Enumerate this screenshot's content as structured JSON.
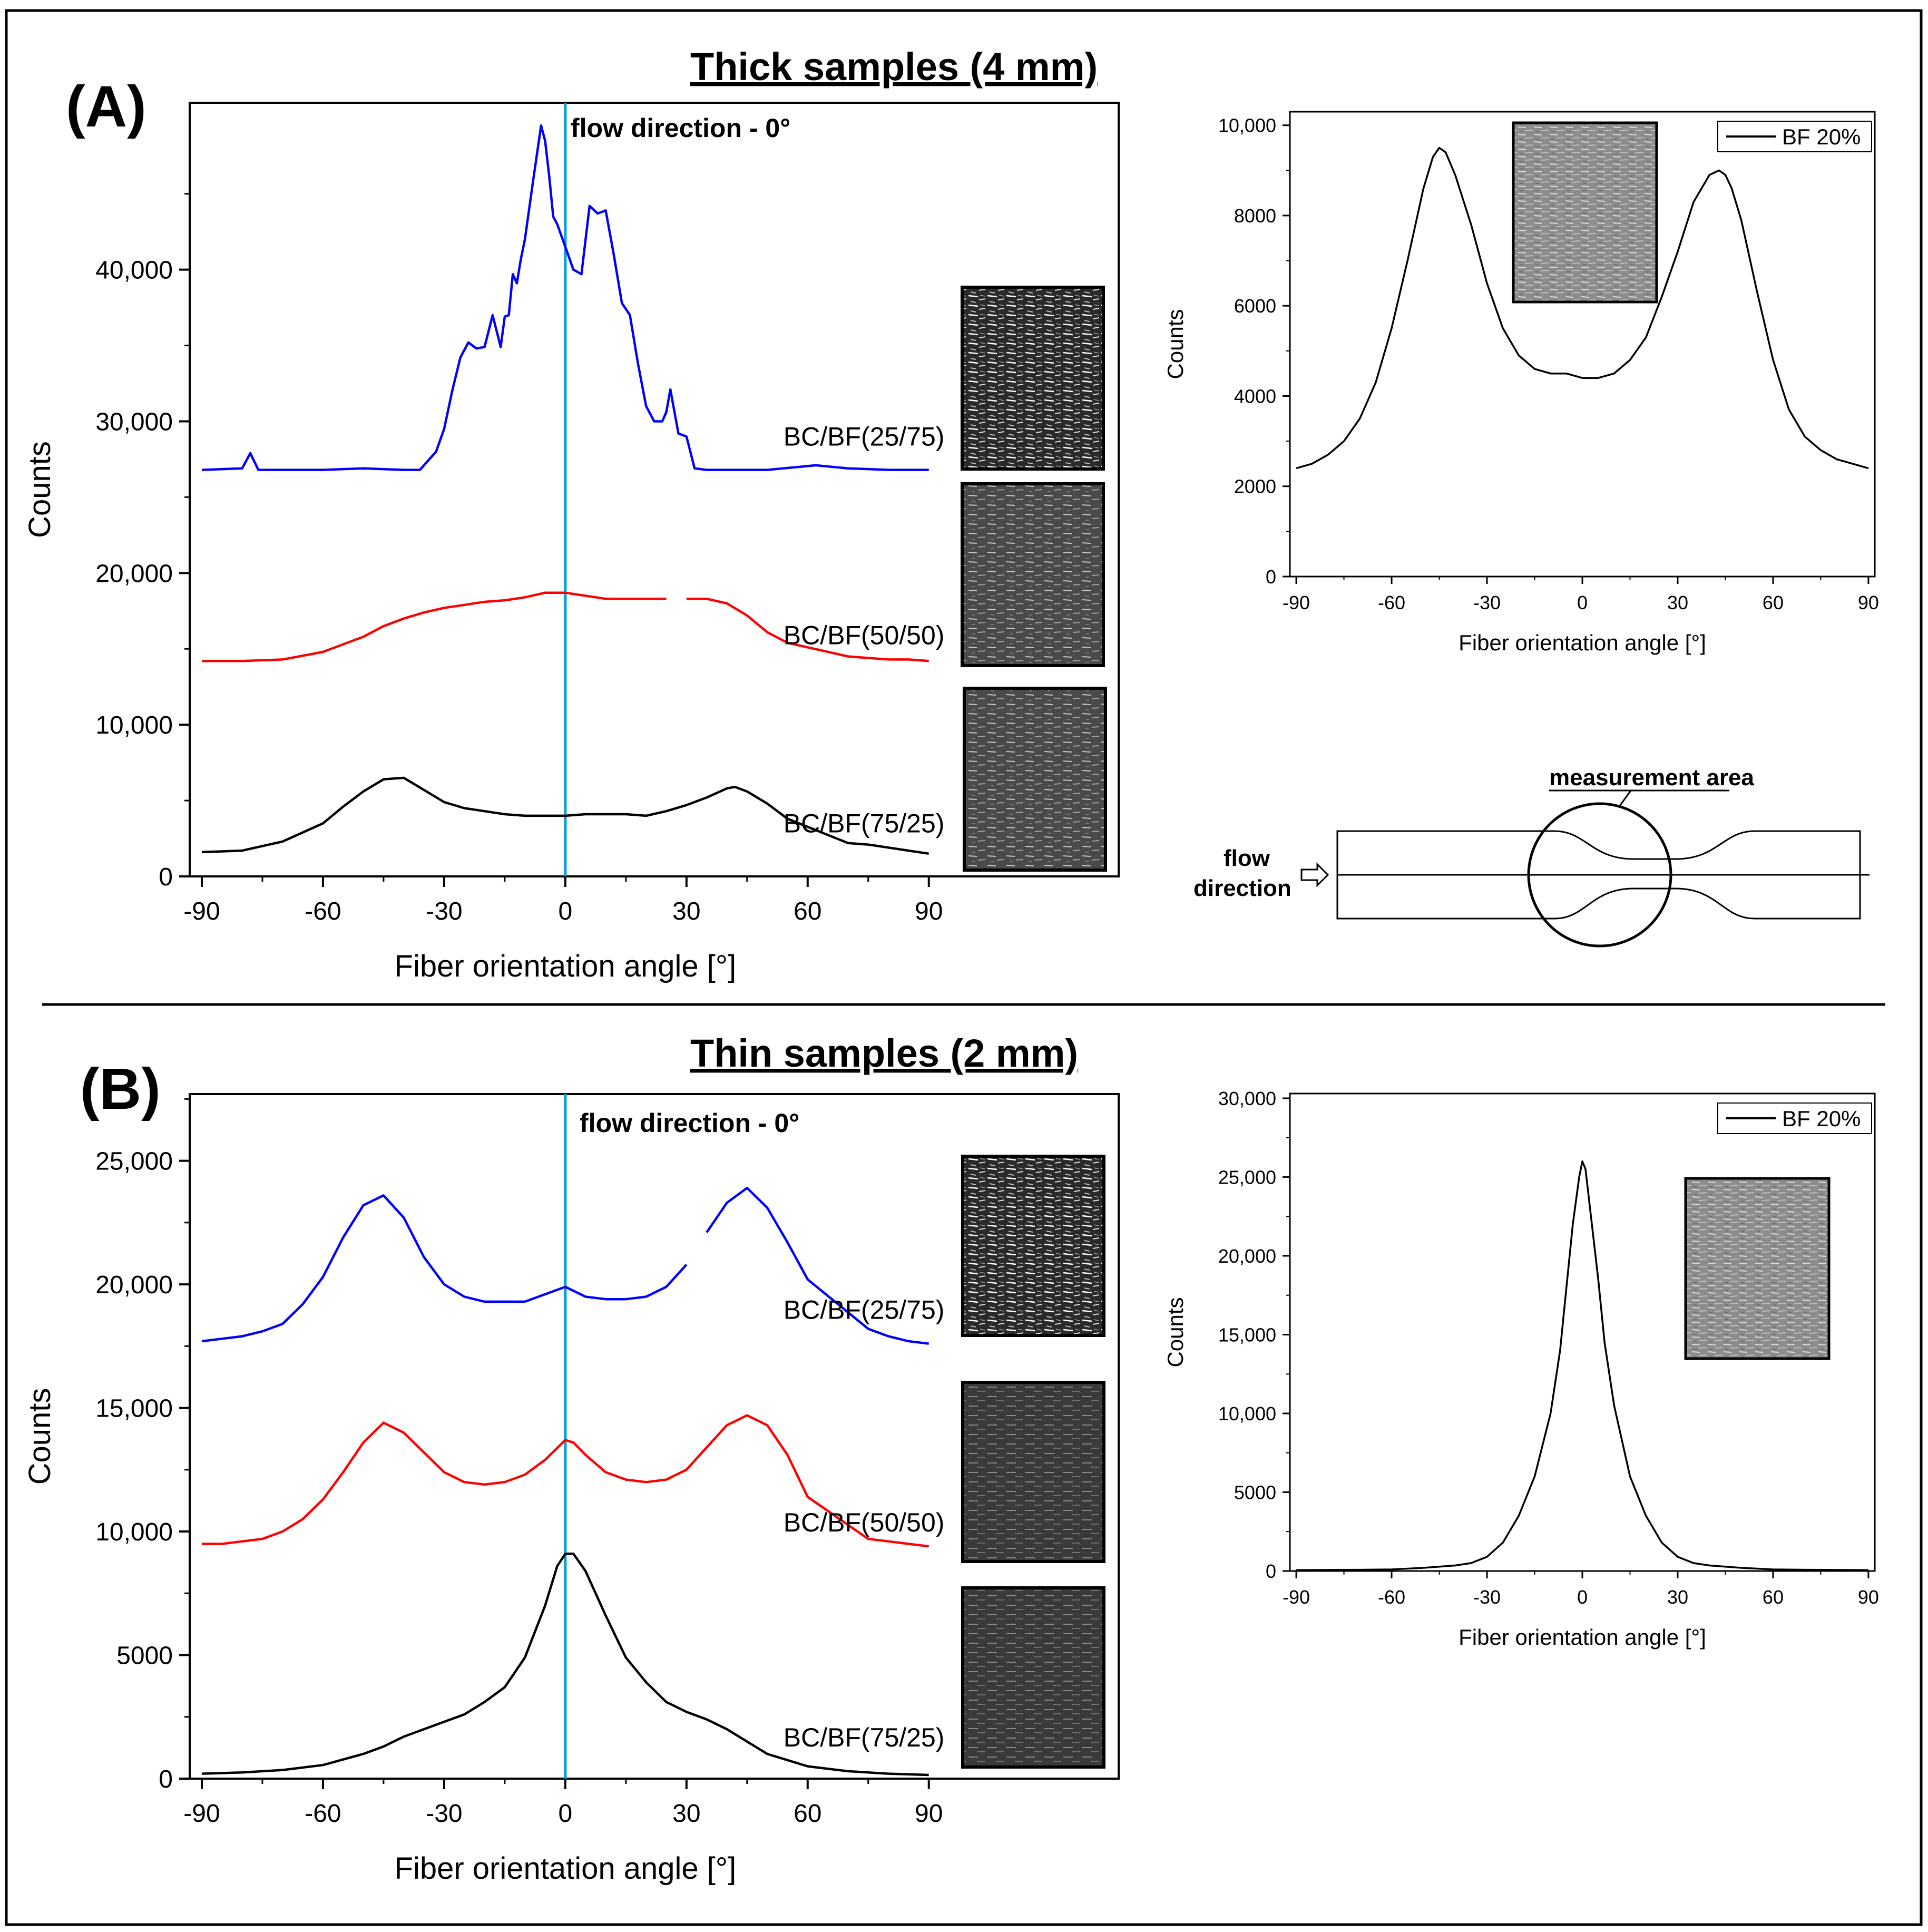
{
  "figure": {
    "panel_a": {
      "letter": "(A)",
      "title": "Thick samples (4 mm)",
      "flow_label": "flow direction - 0°",
      "diagram": {
        "measurement_label": "measurement area",
        "flow_label_line1": "flow",
        "flow_label_line2": "direction"
      }
    },
    "panel_b": {
      "letter": "(B)",
      "title": "Thin samples (2 mm)",
      "flow_label": "flow direction - 0°"
    }
  },
  "colors": {
    "blue": "#0000ff",
    "red": "#ff0000",
    "black": "#000000",
    "flow_line": "#00a0e0"
  },
  "chart_data": [
    {
      "id": "chartA",
      "type": "line",
      "xlabel": "Fiber orientation angle [°]",
      "ylabel": "Counts",
      "xlim": [
        -93,
        137
      ],
      "ylim": [
        0,
        51000
      ],
      "xticks": [
        -90,
        -60,
        -30,
        0,
        30,
        60,
        90
      ],
      "xtick_labels": [
        "-90",
        "-60",
        "-30",
        "0",
        "30",
        "60",
        "90"
      ],
      "yticks": [
        0,
        10000,
        20000,
        30000,
        40000
      ],
      "ytick_labels": [
        "0",
        "10,000",
        "20,000",
        "30,000",
        "40,000"
      ],
      "flow_direction_x": 0,
      "series": [
        {
          "name": "BC/BF(25/75)",
          "color": "#0000ff",
          "label_at": [
            54,
            28400
          ],
          "x": [
            -90,
            -80,
            -78,
            -76,
            -60,
            -50,
            -40,
            -36,
            -32,
            -30,
            -28,
            -26,
            -24,
            -22,
            -20,
            -18,
            -16,
            -15,
            -14,
            -13,
            -12,
            -11,
            -10,
            -8,
            -6,
            -5,
            -4,
            -3,
            -2,
            0,
            2,
            4,
            6,
            8,
            10,
            12,
            14,
            16,
            18,
            20,
            22,
            24,
            25,
            26,
            28,
            30,
            32,
            35,
            40,
            50,
            62,
            70,
            80,
            90
          ],
          "values": [
            26800,
            26900,
            27900,
            26800,
            26800,
            26900,
            26800,
            26800,
            28000,
            29500,
            32000,
            34200,
            35200,
            34800,
            34900,
            37000,
            34900,
            36900,
            37000,
            39700,
            39100,
            40700,
            42000,
            45800,
            49500,
            48500,
            46200,
            43500,
            43000,
            41500,
            40000,
            39700,
            44200,
            43700,
            43900,
            41000,
            37800,
            37000,
            33800,
            31000,
            30000,
            30000,
            30600,
            32100,
            29200,
            29000,
            26900,
            26800,
            26800,
            26800,
            27100,
            26900,
            26800,
            26800
          ]
        },
        {
          "name": "BC/BF(50/50)",
          "color": "#ff0000",
          "label_at": [
            54,
            15300
          ],
          "x": [
            -90,
            -80,
            -70,
            -60,
            -50,
            -45,
            -40,
            -35,
            -30,
            -25,
            -20,
            -15,
            -10,
            -5,
            0,
            5,
            10,
            15,
            20,
            25,
            30,
            35,
            40,
            45,
            50,
            55,
            70,
            75,
            80,
            85,
            90
          ],
          "values": [
            14200,
            14200,
            14300,
            14800,
            15800,
            16500,
            17000,
            17400,
            17700,
            17900,
            18100,
            18200,
            18400,
            18700,
            18700,
            18500,
            18300,
            18300,
            18300,
            18300,
            18300,
            18300,
            18000,
            17200,
            16100,
            15400,
            14500,
            14400,
            14300,
            14300,
            14200
          ],
          "gaps_after": [
            25
          ]
        },
        {
          "name": "BC/BF(75/25)",
          "color": "#000000",
          "label_at": [
            54,
            2900
          ],
          "x": [
            -90,
            -80,
            -70,
            -60,
            -55,
            -50,
            -45,
            -40,
            -35,
            -30,
            -25,
            -20,
            -15,
            -10,
            -5,
            0,
            5,
            10,
            15,
            20,
            25,
            30,
            35,
            40,
            42,
            45,
            50,
            55,
            70,
            75,
            80,
            85,
            90
          ],
          "values": [
            1600,
            1700,
            2300,
            3500,
            4600,
            5600,
            6400,
            6500,
            5700,
            4900,
            4500,
            4300,
            4100,
            4000,
            4000,
            4000,
            4100,
            4100,
            4100,
            4000,
            4300,
            4700,
            5200,
            5800,
            5900,
            5600,
            4800,
            3800,
            2200,
            2100,
            1900,
            1700,
            1500
          ],
          "gaps_after": [
            27
          ]
        }
      ]
    },
    {
      "id": "chartB",
      "type": "line",
      "xlabel": "Fiber orientation angle [°]",
      "ylabel": "Counts",
      "xlim": [
        -93,
        137
      ],
      "ylim": [
        0,
        27700
      ],
      "xticks": [
        -90,
        -60,
        -30,
        0,
        30,
        60,
        90
      ],
      "xtick_labels": [
        "-90",
        "-60",
        "-30",
        "0",
        "30",
        "60",
        "90"
      ],
      "yticks": [
        0,
        5000,
        10000,
        15000,
        20000,
        25000
      ],
      "ytick_labels": [
        "0",
        "5000",
        "10,000",
        "15,000",
        "20,000",
        "25,000"
      ],
      "flow_direction_x": 0,
      "series": [
        {
          "name": "BC/BF(25/75)",
          "color": "#0000ff",
          "label_at": [
            54,
            18600
          ],
          "x": [
            -90,
            -85,
            -80,
            -75,
            -70,
            -65,
            -60,
            -55,
            -50,
            -45,
            -40,
            -35,
            -30,
            -25,
            -20,
            -15,
            -10,
            -5,
            0,
            5,
            10,
            15,
            20,
            25,
            30,
            35,
            40,
            45,
            50,
            55,
            60,
            75,
            80,
            85,
            90
          ],
          "values": [
            17700,
            17800,
            17900,
            18100,
            18400,
            19200,
            20300,
            21900,
            23200,
            23600,
            22700,
            21100,
            20000,
            19500,
            19300,
            19300,
            19300,
            19600,
            19900,
            19500,
            19400,
            19400,
            19500,
            19900,
            20800,
            22100,
            23300,
            23900,
            23100,
            21700,
            20200,
            18200,
            17900,
            17700,
            17600
          ],
          "gaps_after": [
            30
          ]
        },
        {
          "name": "BC/BF(50/50)",
          "color": "#ff0000",
          "label_at": [
            54,
            10000
          ],
          "x": [
            -90,
            -85,
            -80,
            -75,
            -70,
            -65,
            -60,
            -55,
            -50,
            -45,
            -40,
            -35,
            -30,
            -25,
            -20,
            -15,
            -10,
            -5,
            0,
            2,
            5,
            10,
            15,
            20,
            25,
            30,
            35,
            40,
            45,
            50,
            55,
            60,
            75,
            80,
            85,
            90
          ],
          "values": [
            9500,
            9500,
            9600,
            9700,
            10000,
            10500,
            11300,
            12400,
            13600,
            14400,
            14000,
            13200,
            12400,
            12000,
            11900,
            12000,
            12300,
            12900,
            13700,
            13600,
            13100,
            12400,
            12100,
            12000,
            12100,
            12500,
            13400,
            14300,
            14700,
            14300,
            13100,
            11400,
            9700,
            9600,
            9500,
            9400
          ],
          "gaps_after": [
            31
          ]
        },
        {
          "name": "BC/BF(75/25)",
          "color": "#000000",
          "label_at": [
            54,
            1300
          ],
          "x": [
            -90,
            -80,
            -70,
            -60,
            -50,
            -45,
            -40,
            -35,
            -30,
            -25,
            -20,
            -15,
            -10,
            -5,
            -2,
            0,
            2,
            5,
            10,
            15,
            20,
            25,
            30,
            35,
            40,
            45,
            50,
            60,
            70,
            80,
            90
          ],
          "values": [
            200,
            250,
            350,
            550,
            1000,
            1300,
            1700,
            2000,
            2300,
            2600,
            3100,
            3700,
            4900,
            7000,
            8600,
            9100,
            9100,
            8400,
            6600,
            4900,
            3900,
            3100,
            2700,
            2400,
            2000,
            1500,
            1000,
            500,
            300,
            200,
            150
          ]
        }
      ]
    },
    {
      "id": "chartA2",
      "type": "line",
      "xlabel": "Fiber orientation angle [°]",
      "ylabel": "Counts",
      "xlim": [
        -92,
        92
      ],
      "ylim": [
        0,
        10300
      ],
      "xticks": [
        -90,
        -60,
        -30,
        0,
        30,
        60,
        90
      ],
      "xtick_labels": [
        "-90",
        "-60",
        "-30",
        "0",
        "30",
        "60",
        "90"
      ],
      "yticks": [
        0,
        2000,
        4000,
        6000,
        8000,
        10000
      ],
      "ytick_labels": [
        "0",
        "2000",
        "4000",
        "6000",
        "8000",
        "10,000"
      ],
      "legend": "BF 20%",
      "series": [
        {
          "name": "BF 20%",
          "color": "#000000",
          "x": [
            -90,
            -85,
            -80,
            -75,
            -70,
            -65,
            -60,
            -55,
            -50,
            -47,
            -45,
            -43,
            -40,
            -35,
            -30,
            -25,
            -20,
            -15,
            -10,
            -5,
            0,
            5,
            10,
            15,
            20,
            25,
            30,
            35,
            40,
            43,
            45,
            47,
            50,
            55,
            60,
            65,
            70,
            75,
            80,
            85,
            90
          ],
          "values": [
            2400,
            2500,
            2700,
            3000,
            3500,
            4300,
            5500,
            7000,
            8600,
            9300,
            9500,
            9400,
            8900,
            7800,
            6500,
            5500,
            4900,
            4600,
            4500,
            4500,
            4400,
            4400,
            4500,
            4800,
            5300,
            6200,
            7200,
            8300,
            8900,
            9000,
            8900,
            8600,
            7900,
            6300,
            4800,
            3700,
            3100,
            2800,
            2600,
            2500,
            2400
          ]
        }
      ]
    },
    {
      "id": "chartB2",
      "type": "line",
      "xlabel": "Fiber orientation angle [°]",
      "ylabel": "Counts",
      "xlim": [
        -92,
        92
      ],
      "ylim": [
        0,
        30300
      ],
      "xticks": [
        -90,
        -60,
        -30,
        0,
        30,
        60,
        90
      ],
      "xtick_labels": [
        "-90",
        "-60",
        "-30",
        "0",
        "30",
        "60",
        "90"
      ],
      "yticks": [
        0,
        5000,
        10000,
        15000,
        20000,
        25000,
        30000
      ],
      "ytick_labels": [
        "0",
        "5000",
        "10,000",
        "15,000",
        "20,000",
        "25,000",
        "30,000"
      ],
      "legend": "BF 20%",
      "series": [
        {
          "name": "BF 20%",
          "color": "#000000",
          "x": [
            -90,
            -80,
            -70,
            -60,
            -50,
            -40,
            -35,
            -30,
            -25,
            -20,
            -15,
            -10,
            -7,
            -5,
            -3,
            -1,
            0,
            1,
            3,
            5,
            7,
            10,
            15,
            20,
            25,
            30,
            35,
            40,
            50,
            60,
            70,
            80,
            90
          ],
          "values": [
            60,
            70,
            80,
            100,
            200,
            350,
            500,
            900,
            1800,
            3500,
            6000,
            10000,
            14000,
            18000,
            22000,
            25000,
            26000,
            25500,
            22000,
            18500,
            14500,
            10500,
            6000,
            3500,
            1800,
            900,
            500,
            350,
            200,
            100,
            80,
            70,
            60
          ]
        }
      ]
    }
  ]
}
